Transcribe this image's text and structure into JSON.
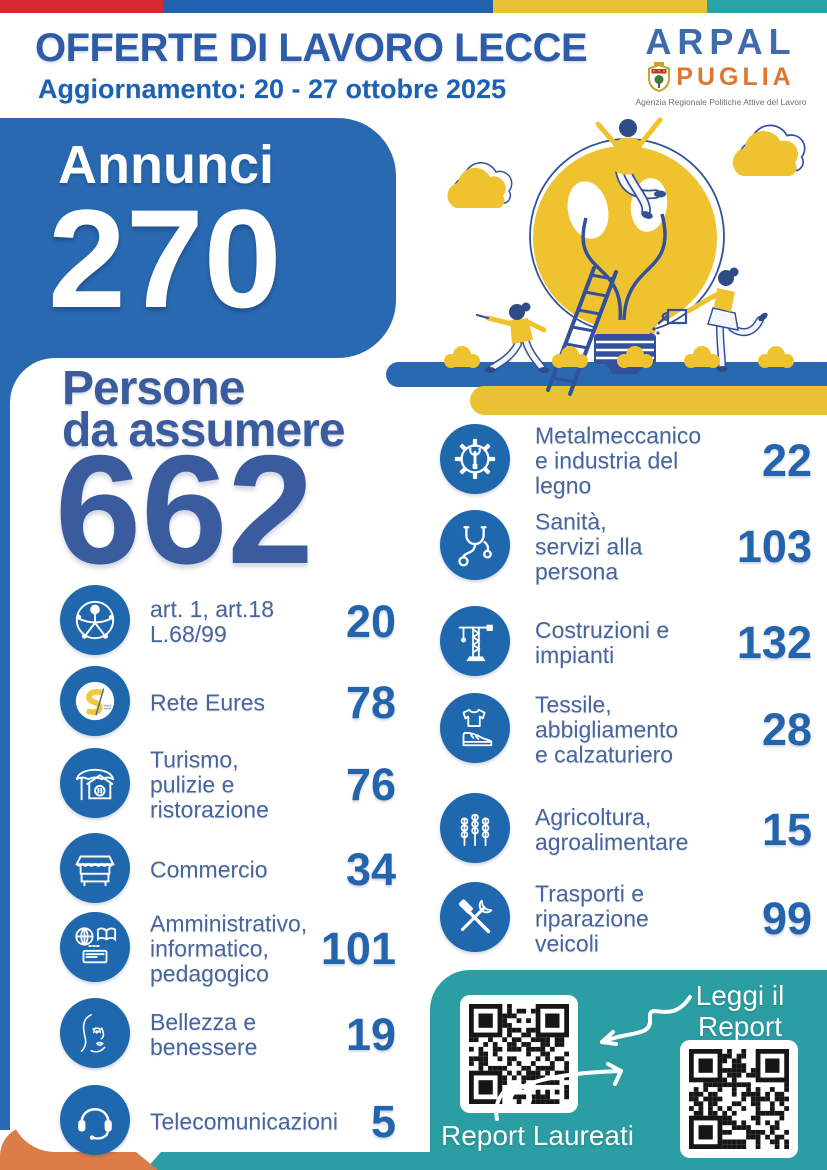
{
  "header": {
    "title": "OFFERTE DI LAVORO LECCE",
    "subtitle": "Aggiornamento: 20 - 27 ottobre 2025"
  },
  "logo": {
    "name": "ARPAL",
    "region": "PUGLIA",
    "tagline": "Agenzia Regionale Politiche Attive del Lavoro"
  },
  "annunci": {
    "label": "Annunci",
    "value": "270"
  },
  "persone": {
    "label": "Persone\nda assumere",
    "value": "662"
  },
  "left_items": [
    {
      "icon": "accessibility-icon",
      "label": "art. 1, art.18\nL.68/99",
      "value": "20"
    },
    {
      "icon": "eures-logo-icon",
      "label": "Rete Eures",
      "value": "78"
    },
    {
      "icon": "umbrella-house-icon",
      "label": "Turismo,\npulizie e\nristorazione",
      "value": "76"
    },
    {
      "icon": "market-stall-icon",
      "label": "Commercio",
      "value": "34"
    },
    {
      "icon": "globe-book-icon",
      "label": "Amministrativo,\ninformatico,\npedagogico",
      "value": "101"
    },
    {
      "icon": "face-icon",
      "label": "Bellezza e\nbenessere",
      "value": "19"
    },
    {
      "icon": "headset-icon",
      "label": "Telecomunicazioni",
      "value": "5"
    }
  ],
  "right_items": [
    {
      "icon": "gear-wrench-icon",
      "label": "Metalmeccanico\ne industria del\nlegno",
      "value": "22"
    },
    {
      "icon": "stethoscope-icon",
      "label": "Sanità,\nservizi alla\npersona",
      "value": "103"
    },
    {
      "icon": "crane-icon",
      "label": "Costruzioni e\nimpianti",
      "value": "132"
    },
    {
      "icon": "tshirt-shoe-icon",
      "label": "Tessile,\nabbigliamento\ne calzaturiero",
      "value": "28"
    },
    {
      "icon": "wheat-icon",
      "label": "Agricoltura,\nagroalimentare",
      "value": "15"
    },
    {
      "icon": "hammer-wrench-icon",
      "label": "Trasporti e\nriparazione\nveicoli",
      "value": "99"
    }
  ],
  "report_box": {
    "leggi_label": "Leggi il\nReport",
    "laureati_label": "Report Laureati"
  },
  "colors": {
    "strip_red": "#D5292F",
    "strip_blue": "#2161AE",
    "strip_yellow": "#E8C234",
    "strip_teal": "#2AA1A6",
    "title_blue": "#2D5CA8",
    "subtitle_blue": "#1C61B2",
    "box_blue": "#2969B1",
    "indigo": "#3A5C9E",
    "circle_blue": "#2068AE",
    "label_blue": "#47659E",
    "value_blue": "#2464AD",
    "teal": "#2B9EA3",
    "orange": "#DC7C48",
    "illustration_yellow": "#EFC32F",
    "illustration_blue": "#33519B",
    "arpal_blue": "#3E6BAD",
    "puglia_orange": "#E0772F",
    "tagline_gray": "#6E6E6E"
  }
}
